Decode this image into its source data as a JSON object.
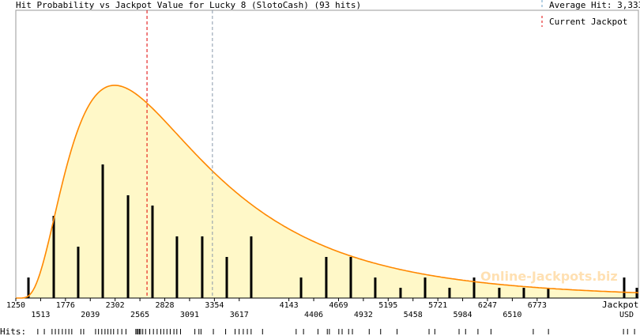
{
  "chart_data": {
    "type": "bar",
    "title": "Hit Probability vs Jackpot Value for Lucky 8 (SlotoCash) (93 hits)",
    "xlabel": [
      "Jackpot,",
      "USD"
    ],
    "xlim": [
      1250,
      7846
    ],
    "ylim": [
      0,
      28
    ],
    "x_ticks_upper": [
      1250,
      1776,
      2302,
      2828,
      3354,
      4143,
      4669,
      5195,
      5721,
      6247,
      6773
    ],
    "x_ticks_lower": [
      1513,
      2039,
      2565,
      3091,
      3617,
      4406,
      4932,
      5458,
      5984,
      6510
    ],
    "bars": {
      "x": [
        1384,
        1652,
        1911,
        2171,
        2439,
        2698,
        2957,
        3225,
        3485,
        3744,
        4272,
        4539,
        4799,
        5058,
        5326,
        5586,
        5845,
        6105,
        6372,
        6632,
        6891,
        7695,
        7829
      ],
      "values": [
        2,
        8,
        5,
        13,
        10,
        9,
        6,
        6,
        4,
        6,
        2,
        4,
        4,
        2,
        1,
        2,
        1,
        2,
        1,
        1,
        1,
        2,
        1
      ]
    },
    "fit_curve": {
      "type": "lognormal",
      "shift": 1250,
      "mu": 7.413,
      "sigma": 0.678,
      "peak": 20.7
    },
    "average_hit": 3333,
    "current_jackpot": 2640,
    "legend": {
      "average_label": "Average Hit: 3,333",
      "current_label": "Current Jackpot"
    },
    "rug_label": "Hits:",
    "rug": [
      1483,
      1552,
      1634,
      1669,
      1704,
      1743,
      1778,
      1812,
      1843,
      1939,
      1969,
      2095,
      2126,
      2161,
      2195,
      2226,
      2256,
      2286,
      2330,
      2373,
      2417,
      2521,
      2534,
      2547,
      2560,
      2573,
      2595,
      2625,
      2669,
      2708,
      2747,
      2786,
      2817,
      2851,
      2886,
      2925,
      2956,
      2995,
      3147,
      3190,
      3212,
      3343,
      3473,
      3573,
      3616,
      3660,
      3703,
      3743,
      3864,
      4220,
      4298,
      4451,
      4550,
      4572,
      4672,
      4707,
      4776,
      4816,
      4994,
      5115,
      5289,
      5628,
      5689,
      5946,
      6015,
      6146,
      6284,
      6732,
      6893,
      7688,
      7731,
      7805
    ],
    "watermark": "Online-Jackpots.biz",
    "colors": {
      "fill": "#fff8c8",
      "curve": "#ff8800",
      "current": "#e00000",
      "average": "#8899aa",
      "bar": "#000000",
      "frame": "#999999"
    }
  }
}
